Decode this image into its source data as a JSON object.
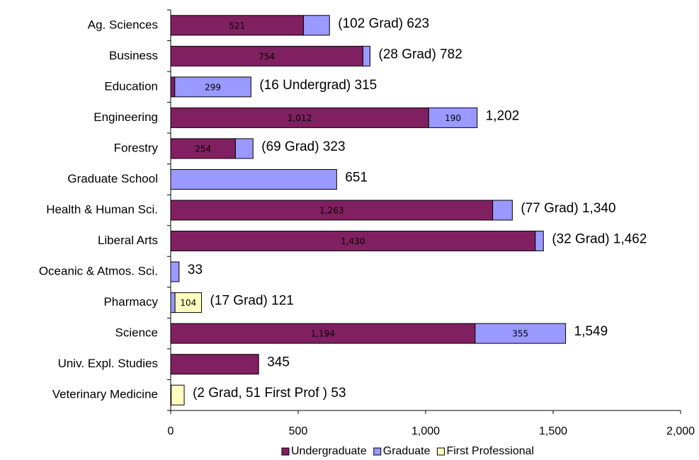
{
  "chart_data": {
    "type": "stacked-bar-horizontal",
    "categories": [
      "Ag. Sciences",
      "Business",
      "Education",
      "Engineering",
      "Forestry",
      "Graduate School",
      "Health & Human Sci.",
      "Liberal Arts",
      "Oceanic & Atmos. Sci.",
      "Pharmacy",
      "Science",
      "Univ. Expl. Studies",
      "Veterinary Medicine"
    ],
    "series": [
      {
        "name": "Undergraduate",
        "color": "#802060",
        "values": [
          521,
          754,
          16,
          1012,
          254,
          null,
          1263,
          1430,
          null,
          null,
          1194,
          345,
          null
        ],
        "value_labels": [
          "521",
          "754",
          null,
          "1,012",
          "254",
          null,
          "1,263",
          "1,430",
          null,
          null,
          "1,194",
          null,
          null
        ]
      },
      {
        "name": "Graduate",
        "color": "#9999ff",
        "values": [
          102,
          28,
          299,
          190,
          69,
          651,
          77,
          32,
          33,
          17,
          355,
          null,
          2
        ],
        "value_labels": [
          null,
          null,
          "299",
          "190",
          null,
          null,
          null,
          null,
          null,
          null,
          "355",
          null,
          null
        ]
      },
      {
        "name": "First Professional",
        "color": "#ffffc0",
        "values": [
          null,
          null,
          null,
          null,
          null,
          null,
          null,
          null,
          null,
          104,
          null,
          null,
          51
        ],
        "value_labels": [
          null,
          null,
          null,
          null,
          null,
          null,
          null,
          null,
          null,
          "104",
          null,
          null,
          null
        ]
      }
    ],
    "annotations": [
      "(102 Grad) 623",
      "(28 Grad) 782",
      "(16 Undergrad) 315",
      "1,202",
      "(69 Grad) 323",
      "651",
      "(77 Grad) 1,340",
      "(32 Grad) 1,462",
      "33",
      "(17 Grad) 121",
      "1,549",
      "345",
      "(2 Grad, 51 First Prof ) 53"
    ],
    "xlim": [
      0,
      2000
    ],
    "xticks": [
      0,
      500,
      {
        "value": 1000,
        "label": "1,000"
      },
      {
        "value": 1500,
        "label": "1,500"
      },
      {
        "value": 2000,
        "label": "2,000"
      }
    ]
  }
}
